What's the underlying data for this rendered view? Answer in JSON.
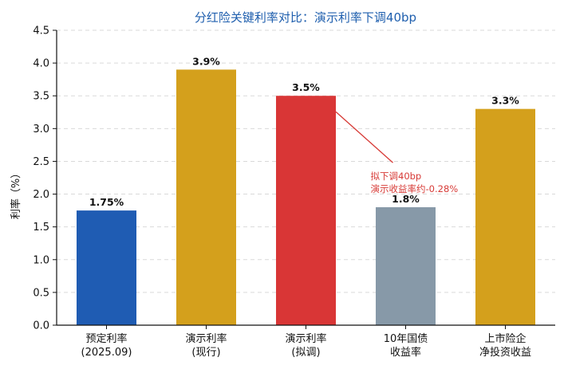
{
  "chart_data": {
    "type": "bar",
    "title": "分红险关键利率对比：演示利率下调40bp",
    "ylabel": "利率（%）",
    "xlabel": "",
    "ylim": [
      0,
      4.5
    ],
    "yticks": [
      "0.0",
      "0.5",
      "1.0",
      "1.5",
      "2.0",
      "2.5",
      "3.0",
      "3.5",
      "4.0",
      "4.5"
    ],
    "ytick_values": [
      0,
      0.5,
      1.0,
      1.5,
      2.0,
      2.5,
      3.0,
      3.5,
      4.0,
      4.5
    ],
    "grid": "horizontal-dashed",
    "categories": [
      [
        "预定利率",
        "(2025.09)"
      ],
      [
        "演示利率",
        "(现行)"
      ],
      [
        "演示利率",
        "(拟调)"
      ],
      [
        "10年国债",
        "收益率"
      ],
      [
        "上市险企",
        "净投资收益"
      ]
    ],
    "values": [
      1.75,
      3.9,
      3.5,
      1.8,
      3.3
    ],
    "data_labels": [
      "1.75%",
      "3.9%",
      "3.5%",
      "1.8%",
      "3.3%"
    ],
    "colors": [
      "#1f5cb3",
      "#d4a01c",
      "#d93636",
      "#8799a8",
      "#d4a01c"
    ],
    "annotation": {
      "lines": [
        "拟下调40bp",
        "演示收益率约-0.28%"
      ],
      "color": "#d73a36",
      "points_to_category": 2
    }
  }
}
